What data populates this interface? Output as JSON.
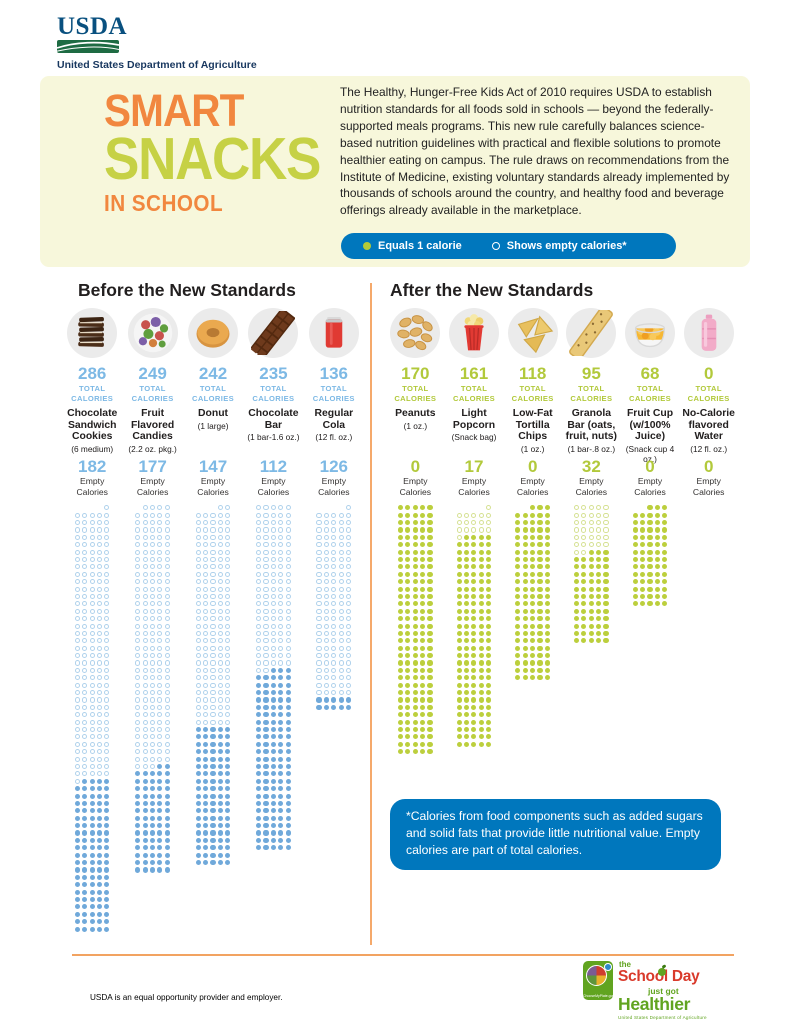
{
  "usda_header": {
    "logo_text": "USDA",
    "dept": "United States Department of Agriculture"
  },
  "hero": {
    "title_line1": "SMART",
    "title_line2": "SNACKS",
    "title_line3": "IN SCHOOL",
    "paragraph": "The Healthy, Hunger-Free Kids Act of 2010 requires USDA to establish nutrition standards for all foods sold in schools — beyond the federally-supported meals programs. This new rule carefully balances science-based nutrition guidelines with practical and flexible solutions to promote healthier eating on campus. The rule draws on recommendations from the Institute of Medicine, existing voluntary standards already implemented by thousands of schools around the country, and healthy food and beverage offerings already available in the marketplace.",
    "legend": {
      "filled_label": "Equals 1 calorie",
      "empty_label": "Shows empty calories*",
      "pill_color": "#0077bd",
      "filled_dot_color": "#b4ca37"
    },
    "background_color": "#f7f7db",
    "title_orange": "#f1873f",
    "title_green": "#c6d145"
  },
  "chart_data": {
    "type": "unit_dot_matrix",
    "unit": "1 dot = 1 calorie; open dots = empty calories",
    "grid_width_dots": 5,
    "labels": {
      "total_calories": "TOTAL CALORIES",
      "empty_calories": "Empty Calories"
    },
    "sections": [
      {
        "title": "Before the New Standards",
        "accent": "#7db9e5",
        "dot_fill": "#70a9da",
        "dot_open": "#b0d2ec",
        "items": [
          {
            "name": "Chocolate Sandwich Cookies",
            "portion": "(6 medium)",
            "total_calories": 286,
            "empty_calories": 182,
            "icon": "cookies"
          },
          {
            "name": "Fruit Flavored Candies",
            "portion": "(2.2 oz. pkg.)",
            "total_calories": 249,
            "empty_calories": 177,
            "icon": "candies"
          },
          {
            "name": "Donut",
            "portion": "(1 large)",
            "total_calories": 242,
            "empty_calories": 147,
            "icon": "donut"
          },
          {
            "name": "Chocolate Bar",
            "portion": "(1 bar-1.6 oz.)",
            "total_calories": 235,
            "empty_calories": 112,
            "icon": "chocolate-bar"
          },
          {
            "name": "Regular Cola",
            "portion": "(12 fl. oz.)",
            "total_calories": 136,
            "empty_calories": 126,
            "icon": "cola-can"
          }
        ]
      },
      {
        "title": "After the New Standards",
        "accent": "#b2c93b",
        "dot_fill": "#bccf3d",
        "dot_open": "#d6e193",
        "items": [
          {
            "name": "Peanuts",
            "portion": "(1 oz.)",
            "total_calories": 170,
            "empty_calories": 0,
            "icon": "peanuts"
          },
          {
            "name": "Light Popcorn",
            "portion": "(Snack bag)",
            "total_calories": 161,
            "empty_calories": 17,
            "icon": "popcorn"
          },
          {
            "name": "Low-Fat Tortilla Chips",
            "portion": "(1 oz.)",
            "total_calories": 118,
            "empty_calories": 0,
            "icon": "tortilla-chips"
          },
          {
            "name": "Granola Bar (oats, fruit, nuts)",
            "portion": "(1 bar-.8 oz.)",
            "total_calories": 95,
            "empty_calories": 32,
            "icon": "granola-bar"
          },
          {
            "name": "Fruit Cup (w/100% Juice)",
            "portion": "(Snack cup 4 oz.)",
            "total_calories": 68,
            "empty_calories": 0,
            "icon": "fruit-cup"
          },
          {
            "name": "No-Calorie flavored Water",
            "portion": "(12 fl. oz.)",
            "total_calories": 0,
            "empty_calories": 0,
            "icon": "water-bottle"
          }
        ]
      }
    ]
  },
  "footnote": "*Calories from food components such as added sugars and solid fats that provide little nutritional value. Empty calories are part of total calories.",
  "footer": {
    "disclaimer": "USDA is an equal opportunity provider and employer.",
    "badge": {
      "line1": "the",
      "line2": "School Day",
      "line3": "just got",
      "line4": "Healthier",
      "line5": "United States Department of Agriculture",
      "myplate_caption": "ChooseMyPlate.gov"
    }
  }
}
